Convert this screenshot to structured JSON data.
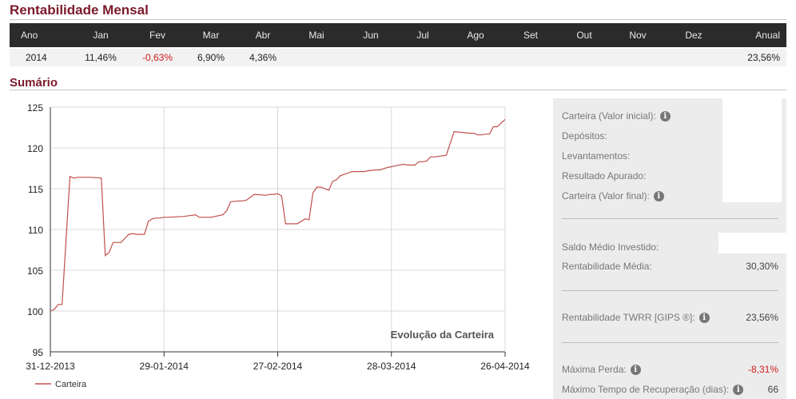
{
  "monthly": {
    "title": "Rentabilidade Mensal",
    "headers": [
      "Ano",
      "Jan",
      "Fev",
      "Mar",
      "Abr",
      "Mai",
      "Jun",
      "Jul",
      "Ago",
      "Set",
      "Out",
      "Nov",
      "Dez",
      "Anual"
    ],
    "row": [
      "2014",
      "11,46%",
      "-0,63%",
      "6,90%",
      "4,36%",
      "",
      "",
      "",
      "",
      "",
      "",
      "",
      "",
      "23,56%"
    ]
  },
  "summary": {
    "title": "Sumário",
    "rows_a": [
      {
        "label": "Carteira (Valor inicial):",
        "info": true
      },
      {
        "label": "Depósitos:",
        "info": false
      },
      {
        "label": "Levantamentos:",
        "info": false
      },
      {
        "label": "Resultado Apurado:",
        "info": false
      },
      {
        "label": "Carteira (Valor final):",
        "info": true
      }
    ],
    "saldo_label": "Saldo Médio Investido:",
    "rent_media_label": "Rentabilidade Média:",
    "rent_media_value": "30,30%",
    "twrr_label": "Rentabilidade TWRR [GIPS ®]:",
    "twrr_value": "23,56%",
    "max_perda_label": "Máxima Perda:",
    "max_perda_value": "-8,31%",
    "max_rec_label": "Máximo Tempo de Recuperação (dias):",
    "max_rec_value": "66",
    "info_glyph": "i"
  },
  "chart_data": {
    "type": "line",
    "title": "Evolução da Carteira",
    "xlabel": "",
    "ylabel": "",
    "ylim": [
      95,
      125
    ],
    "yticks": [
      95,
      100,
      105,
      110,
      115,
      120,
      125
    ],
    "xlim": [
      "2013-12-31",
      "2014-04-26"
    ],
    "xticks": [
      "31-12-2013",
      "29-01-2014",
      "27-02-2014",
      "28-03-2014",
      "26-04-2014"
    ],
    "grid": true,
    "legend_position": "bottom-left",
    "colors": {
      "line": "#c0504d"
    },
    "series": [
      {
        "name": "Carteira",
        "x": [
          "2013-12-31",
          "2014-01-01",
          "2014-01-02",
          "2014-01-03",
          "2014-01-05",
          "2014-01-06",
          "2014-01-07",
          "2014-01-08",
          "2014-01-09",
          "2014-01-10",
          "2014-01-13",
          "2014-01-14",
          "2014-01-15",
          "2014-01-16",
          "2014-01-17",
          "2014-01-18",
          "2014-01-20",
          "2014-01-21",
          "2014-01-22",
          "2014-01-23",
          "2014-01-24",
          "2014-01-25",
          "2014-01-26",
          "2014-01-27",
          "2014-01-28",
          "2014-01-29",
          "2014-01-30",
          "2014-02-03",
          "2014-02-06",
          "2014-02-07",
          "2014-02-10",
          "2014-02-11",
          "2014-02-13",
          "2014-02-14",
          "2014-02-15",
          "2014-02-17",
          "2014-02-18",
          "2014-02-19",
          "2014-02-21",
          "2014-02-24",
          "2014-02-25",
          "2014-02-26",
          "2014-02-27",
          "2014-02-28",
          "2014-03-01",
          "2014-03-03",
          "2014-03-04",
          "2014-03-06",
          "2014-03-07",
          "2014-03-08",
          "2014-03-09",
          "2014-03-10",
          "2014-03-12",
          "2014-03-13",
          "2014-03-14",
          "2014-03-15",
          "2014-03-18",
          "2014-03-21",
          "2014-03-22",
          "2014-03-24",
          "2014-03-25",
          "2014-03-27",
          "2014-03-29",
          "2014-03-31",
          "2014-04-01",
          "2014-04-03",
          "2014-04-04",
          "2014-04-05",
          "2014-04-06",
          "2014-04-07",
          "2014-04-08",
          "2014-04-11",
          "2014-04-13",
          "2014-04-17",
          "2014-04-18",
          "2014-04-19",
          "2014-04-20",
          "2014-04-21",
          "2014-04-22",
          "2014-04-23",
          "2014-04-24",
          "2014-04-26"
        ],
        "y": [
          100.0,
          100.2,
          100.8,
          100.8,
          116.5,
          116.3,
          116.4,
          116.4,
          116.4,
          116.4,
          116.3,
          106.8,
          107.2,
          108.4,
          108.4,
          108.4,
          109.4,
          109.5,
          109.4,
          109.4,
          109.4,
          111.0,
          111.3,
          111.4,
          111.4,
          111.5,
          111.5,
          111.6,
          111.8,
          111.5,
          111.5,
          111.6,
          111.8,
          112.3,
          113.4,
          113.5,
          113.5,
          113.6,
          114.3,
          114.2,
          114.3,
          114.3,
          114.4,
          114.1,
          110.7,
          110.7,
          110.7,
          111.3,
          111.2,
          114.5,
          115.2,
          115.2,
          114.8,
          115.9,
          116.1,
          116.6,
          117.1,
          117.1,
          117.2,
          117.3,
          117.3,
          117.6,
          117.8,
          118.0,
          117.9,
          117.9,
          118.3,
          118.3,
          118.4,
          118.9,
          118.9,
          119.1,
          122.0,
          121.8,
          121.8,
          121.6,
          121.6,
          121.7,
          121.7,
          122.6,
          122.6,
          123.5
        ]
      }
    ]
  }
}
